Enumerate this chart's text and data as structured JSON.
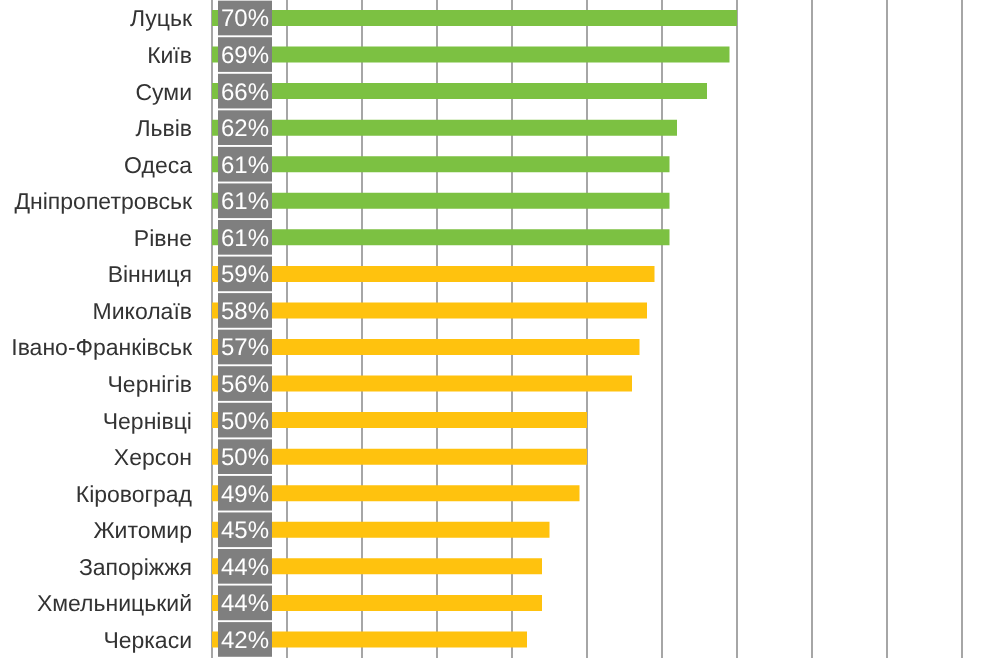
{
  "chart_data": {
    "type": "bar",
    "orientation": "horizontal",
    "categories": [
      "Луцьк",
      "Київ",
      "Суми",
      "Львів",
      "Одеса",
      "Дніпропетровськ",
      "Рівне",
      "Вінниця",
      "Миколаїв",
      "Івано-Франківськ",
      "Чернігів",
      "Чернівці",
      "Херсон",
      "Кіровоград",
      "Житомир",
      "Запоріжжя",
      "Хмельницький",
      "Черкаси"
    ],
    "values": [
      70,
      69,
      66,
      62,
      61,
      61,
      61,
      59,
      58,
      57,
      56,
      50,
      50,
      49,
      45,
      44,
      44,
      42
    ],
    "value_labels": [
      "70%",
      "69%",
      "66%",
      "62%",
      "61%",
      "61%",
      "61%",
      "59%",
      "58%",
      "57%",
      "56%",
      "50%",
      "50%",
      "49%",
      "45%",
      "44%",
      "44%",
      "42%"
    ],
    "colors": [
      "#7cc142",
      "#7cc142",
      "#7cc142",
      "#7cc142",
      "#7cc142",
      "#7cc142",
      "#7cc142",
      "#ffc20e",
      "#ffc20e",
      "#ffc20e",
      "#ffc20e",
      "#ffc20e",
      "#ffc20e",
      "#ffc20e",
      "#ffc20e",
      "#ffc20e",
      "#ffc20e",
      "#ffc20e"
    ],
    "xlim": [
      0,
      100
    ],
    "grid": "x",
    "tick_labels": "y"
  }
}
